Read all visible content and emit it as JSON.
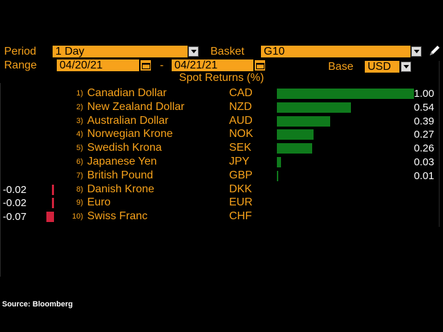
{
  "controls": {
    "period_label": "Period",
    "period_value": "1 Day",
    "basket_label": "Basket",
    "basket_value": "G10",
    "range_label": "Range",
    "range_start": "04/20/21",
    "range_sep": "-",
    "range_end": "04/21/21",
    "base_label": "Base",
    "base_value": "USD"
  },
  "chart_title": "Spot Returns (%)",
  "chart_data": {
    "type": "bar",
    "title": "Spot Returns (%)",
    "categories": [
      "Canadian Dollar",
      "New Zealand Dollar",
      "Australian Dollar",
      "Norwegian Krone",
      "Swedish Krona",
      "Japanese Yen",
      "British Pound",
      "Danish Krone",
      "Euro",
      "Swiss Franc"
    ],
    "codes": [
      "CAD",
      "NZD",
      "AUD",
      "NOK",
      "SEK",
      "JPY",
      "GBP",
      "DKK",
      "EUR",
      "CHF"
    ],
    "values": [
      1.0,
      0.54,
      0.39,
      0.27,
      0.26,
      0.03,
      0.01,
      -0.02,
      -0.02,
      -0.07
    ],
    "value_labels": [
      "1.00",
      "0.54",
      "0.39",
      "0.27",
      "0.26",
      "0.03",
      "0.01",
      "-0.02",
      "-0.02",
      "-0.07"
    ],
    "rank_labels": [
      "1)",
      "2)",
      "3)",
      "4)",
      "5)",
      "6)",
      "7)",
      "8)",
      "9)",
      "10)"
    ],
    "positive_color": "#0f7a1c",
    "negative_color": "#d1223c"
  },
  "source": "Source: Bloomberg",
  "colors": {
    "accent": "#f7a21b",
    "background": "#000000"
  }
}
